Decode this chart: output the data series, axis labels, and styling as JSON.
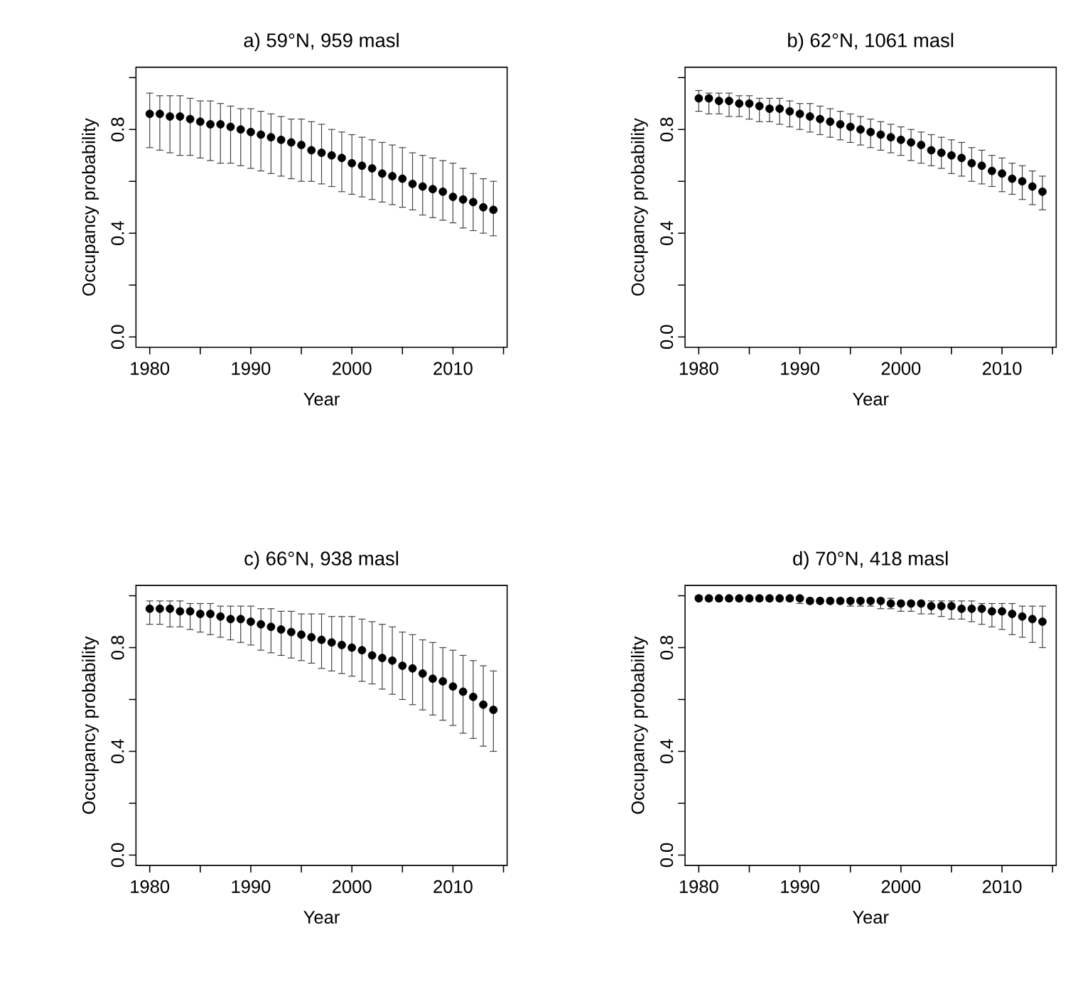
{
  "chart_data": [
    {
      "type": "scatter",
      "title": "a) 59°N, 959 masl",
      "xlabel": "Year",
      "ylabel": "Occupancy probability",
      "color": "#000000",
      "marker": "circle",
      "x": [
        1980,
        1981,
        1982,
        1983,
        1984,
        1985,
        1986,
        1987,
        1988,
        1989,
        1990,
        1991,
        1992,
        1993,
        1994,
        1995,
        1996,
        1997,
        1998,
        1999,
        2000,
        2001,
        2002,
        2003,
        2004,
        2005,
        2006,
        2007,
        2008,
        2009,
        2010,
        2011,
        2012,
        2013,
        2014
      ],
      "values": [
        0.86,
        0.86,
        0.85,
        0.85,
        0.84,
        0.83,
        0.82,
        0.82,
        0.81,
        0.8,
        0.79,
        0.78,
        0.77,
        0.76,
        0.75,
        0.74,
        0.72,
        0.71,
        0.7,
        0.69,
        0.67,
        0.66,
        0.65,
        0.63,
        0.62,
        0.61,
        0.59,
        0.58,
        0.57,
        0.56,
        0.54,
        0.53,
        0.52,
        0.5,
        0.49
      ],
      "errors": [
        [
          0.73,
          0.94
        ],
        [
          0.72,
          0.93
        ],
        [
          0.71,
          0.93
        ],
        [
          0.7,
          0.93
        ],
        [
          0.7,
          0.92
        ],
        [
          0.69,
          0.91
        ],
        [
          0.68,
          0.91
        ],
        [
          0.67,
          0.9
        ],
        [
          0.67,
          0.89
        ],
        [
          0.66,
          0.88
        ],
        [
          0.65,
          0.88
        ],
        [
          0.64,
          0.87
        ],
        [
          0.63,
          0.86
        ],
        [
          0.62,
          0.85
        ],
        [
          0.61,
          0.84
        ],
        [
          0.6,
          0.84
        ],
        [
          0.6,
          0.83
        ],
        [
          0.59,
          0.82
        ],
        [
          0.58,
          0.8
        ],
        [
          0.56,
          0.79
        ],
        [
          0.55,
          0.78
        ],
        [
          0.54,
          0.77
        ],
        [
          0.53,
          0.76
        ],
        [
          0.52,
          0.75
        ],
        [
          0.51,
          0.74
        ],
        [
          0.5,
          0.73
        ],
        [
          0.49,
          0.71
        ],
        [
          0.47,
          0.7
        ],
        [
          0.46,
          0.69
        ],
        [
          0.45,
          0.68
        ],
        [
          0.44,
          0.67
        ],
        [
          0.42,
          0.65
        ],
        [
          0.41,
          0.63
        ],
        [
          0.4,
          0.61
        ],
        [
          0.39,
          0.6
        ]
      ],
      "xlim": [
        1978.64,
        2015.36
      ],
      "ylim": [
        -0.04,
        1.04
      ],
      "xticks": [
        1980,
        {
          "value": 1985,
          "label": null
        },
        1990,
        {
          "value": 1995,
          "label": null
        },
        2000,
        {
          "value": 2005,
          "label": null
        },
        2010,
        {
          "value": 2015,
          "label": null
        }
      ],
      "yticks": [
        {
          "value": 0,
          "label": "0.0"
        },
        {
          "value": 0.2,
          "label": null
        },
        {
          "value": 0.4,
          "label": "0.4"
        },
        {
          "value": 0.6,
          "label": null
        },
        {
          "value": 0.8,
          "label": "0.8"
        },
        {
          "value": 1.0,
          "label": null
        }
      ]
    },
    {
      "type": "scatter",
      "title": "b) 62°N, 1061 masl",
      "xlabel": "Year",
      "ylabel": "Occupancy probability",
      "color": "#000000",
      "marker": "circle",
      "x": [
        1980,
        1981,
        1982,
        1983,
        1984,
        1985,
        1986,
        1987,
        1988,
        1989,
        1990,
        1991,
        1992,
        1993,
        1994,
        1995,
        1996,
        1997,
        1998,
        1999,
        2000,
        2001,
        2002,
        2003,
        2004,
        2005,
        2006,
        2007,
        2008,
        2009,
        2010,
        2011,
        2012,
        2013,
        2014
      ],
      "values": [
        0.92,
        0.92,
        0.91,
        0.91,
        0.9,
        0.9,
        0.89,
        0.88,
        0.88,
        0.87,
        0.86,
        0.85,
        0.84,
        0.83,
        0.82,
        0.81,
        0.8,
        0.79,
        0.78,
        0.77,
        0.76,
        0.75,
        0.74,
        0.72,
        0.71,
        0.7,
        0.69,
        0.67,
        0.66,
        0.64,
        0.63,
        0.61,
        0.6,
        0.58,
        0.56
      ],
      "errors": [
        [
          0.87,
          0.95
        ],
        [
          0.86,
          0.94
        ],
        [
          0.86,
          0.94
        ],
        [
          0.85,
          0.94
        ],
        [
          0.85,
          0.93
        ],
        [
          0.84,
          0.93
        ],
        [
          0.83,
          0.92
        ],
        [
          0.83,
          0.92
        ],
        [
          0.82,
          0.92
        ],
        [
          0.81,
          0.91
        ],
        [
          0.8,
          0.9
        ],
        [
          0.79,
          0.9
        ],
        [
          0.78,
          0.89
        ],
        [
          0.77,
          0.88
        ],
        [
          0.76,
          0.87
        ],
        [
          0.75,
          0.86
        ],
        [
          0.74,
          0.85
        ],
        [
          0.73,
          0.84
        ],
        [
          0.72,
          0.83
        ],
        [
          0.71,
          0.82
        ],
        [
          0.7,
          0.81
        ],
        [
          0.68,
          0.8
        ],
        [
          0.67,
          0.79
        ],
        [
          0.66,
          0.78
        ],
        [
          0.65,
          0.77
        ],
        [
          0.63,
          0.76
        ],
        [
          0.62,
          0.75
        ],
        [
          0.6,
          0.73
        ],
        [
          0.59,
          0.72
        ],
        [
          0.58,
          0.7
        ],
        [
          0.56,
          0.69
        ],
        [
          0.55,
          0.67
        ],
        [
          0.53,
          0.66
        ],
        [
          0.51,
          0.64
        ],
        [
          0.49,
          0.62
        ]
      ],
      "xlim": [
        1978.64,
        2015.36
      ],
      "ylim": [
        -0.04,
        1.04
      ],
      "xticks": [
        1980,
        {
          "value": 1985,
          "label": null
        },
        1990,
        {
          "value": 1995,
          "label": null
        },
        2000,
        {
          "value": 2005,
          "label": null
        },
        2010,
        {
          "value": 2015,
          "label": null
        }
      ],
      "yticks": [
        {
          "value": 0,
          "label": "0.0"
        },
        {
          "value": 0.2,
          "label": null
        },
        {
          "value": 0.4,
          "label": "0.4"
        },
        {
          "value": 0.6,
          "label": null
        },
        {
          "value": 0.8,
          "label": "0.8"
        },
        {
          "value": 1.0,
          "label": null
        }
      ]
    },
    {
      "type": "scatter",
      "title": "c) 66°N, 938 masl",
      "xlabel": "Year",
      "ylabel": "Occupancy probability",
      "color": "#000000",
      "marker": "circle",
      "x": [
        1980,
        1981,
        1982,
        1983,
        1984,
        1985,
        1986,
        1987,
        1988,
        1989,
        1990,
        1991,
        1992,
        1993,
        1994,
        1995,
        1996,
        1997,
        1998,
        1999,
        2000,
        2001,
        2002,
        2003,
        2004,
        2005,
        2006,
        2007,
        2008,
        2009,
        2010,
        2011,
        2012,
        2013,
        2014
      ],
      "values": [
        0.95,
        0.95,
        0.95,
        0.94,
        0.94,
        0.93,
        0.93,
        0.92,
        0.91,
        0.91,
        0.9,
        0.89,
        0.88,
        0.87,
        0.86,
        0.85,
        0.84,
        0.83,
        0.82,
        0.81,
        0.8,
        0.79,
        0.77,
        0.76,
        0.75,
        0.73,
        0.72,
        0.7,
        0.68,
        0.67,
        0.65,
        0.63,
        0.61,
        0.58,
        0.56
      ],
      "errors": [
        [
          0.89,
          0.98
        ],
        [
          0.89,
          0.98
        ],
        [
          0.88,
          0.98
        ],
        [
          0.88,
          0.98
        ],
        [
          0.87,
          0.97
        ],
        [
          0.86,
          0.97
        ],
        [
          0.85,
          0.97
        ],
        [
          0.84,
          0.96
        ],
        [
          0.83,
          0.96
        ],
        [
          0.82,
          0.96
        ],
        [
          0.81,
          0.96
        ],
        [
          0.79,
          0.95
        ],
        [
          0.78,
          0.95
        ],
        [
          0.77,
          0.94
        ],
        [
          0.76,
          0.94
        ],
        [
          0.75,
          0.93
        ],
        [
          0.74,
          0.93
        ],
        [
          0.72,
          0.93
        ],
        [
          0.71,
          0.92
        ],
        [
          0.7,
          0.92
        ],
        [
          0.69,
          0.92
        ],
        [
          0.67,
          0.91
        ],
        [
          0.66,
          0.9
        ],
        [
          0.64,
          0.89
        ],
        [
          0.62,
          0.88
        ],
        [
          0.6,
          0.86
        ],
        [
          0.58,
          0.85
        ],
        [
          0.56,
          0.83
        ],
        [
          0.54,
          0.82
        ],
        [
          0.52,
          0.8
        ],
        [
          0.5,
          0.79
        ],
        [
          0.47,
          0.77
        ],
        [
          0.45,
          0.75
        ],
        [
          0.42,
          0.73
        ],
        [
          0.4,
          0.71
        ]
      ],
      "xlim": [
        1978.64,
        2015.36
      ],
      "ylim": [
        -0.04,
        1.04
      ],
      "xticks": [
        1980,
        {
          "value": 1985,
          "label": null
        },
        1990,
        {
          "value": 1995,
          "label": null
        },
        2000,
        {
          "value": 2005,
          "label": null
        },
        2010,
        {
          "value": 2015,
          "label": null
        }
      ],
      "yticks": [
        {
          "value": 0,
          "label": "0.0"
        },
        {
          "value": 0.2,
          "label": null
        },
        {
          "value": 0.4,
          "label": "0.4"
        },
        {
          "value": 0.6,
          "label": null
        },
        {
          "value": 0.8,
          "label": "0.8"
        },
        {
          "value": 1.0,
          "label": null
        }
      ]
    },
    {
      "type": "scatter",
      "title": "d) 70°N, 418 masl",
      "xlabel": "Year",
      "ylabel": "Occupancy probability",
      "color": "#000000",
      "marker": "circle",
      "x": [
        1980,
        1981,
        1982,
        1983,
        1984,
        1985,
        1986,
        1987,
        1988,
        1989,
        1990,
        1991,
        1992,
        1993,
        1994,
        1995,
        1996,
        1997,
        1998,
        1999,
        2000,
        2001,
        2002,
        2003,
        2004,
        2005,
        2006,
        2007,
        2008,
        2009,
        2010,
        2011,
        2012,
        2013,
        2014
      ],
      "values": [
        0.99,
        0.99,
        0.99,
        0.99,
        0.99,
        0.99,
        0.99,
        0.99,
        0.99,
        0.99,
        0.99,
        0.98,
        0.98,
        0.98,
        0.98,
        0.98,
        0.98,
        0.98,
        0.98,
        0.97,
        0.97,
        0.97,
        0.97,
        0.96,
        0.96,
        0.96,
        0.95,
        0.95,
        0.95,
        0.94,
        0.94,
        0.93,
        0.92,
        0.91,
        0.9
      ],
      "errors": [
        [
          0.99,
          1.0
        ],
        [
          0.98,
          0.99
        ],
        [
          0.98,
          0.99
        ],
        [
          0.98,
          0.99
        ],
        [
          0.98,
          0.99
        ],
        [
          0.98,
          0.99
        ],
        [
          0.98,
          0.99
        ],
        [
          0.98,
          0.99
        ],
        [
          0.98,
          0.99
        ],
        [
          0.98,
          0.99
        ],
        [
          0.97,
          0.99
        ],
        [
          0.97,
          0.99
        ],
        [
          0.97,
          0.99
        ],
        [
          0.97,
          0.99
        ],
        [
          0.97,
          0.99
        ],
        [
          0.96,
          0.99
        ],
        [
          0.96,
          0.99
        ],
        [
          0.96,
          0.99
        ],
        [
          0.95,
          0.99
        ],
        [
          0.95,
          0.99
        ],
        [
          0.94,
          0.98
        ],
        [
          0.94,
          0.98
        ],
        [
          0.93,
          0.98
        ],
        [
          0.93,
          0.98
        ],
        [
          0.92,
          0.98
        ],
        [
          0.91,
          0.98
        ],
        [
          0.91,
          0.98
        ],
        [
          0.9,
          0.98
        ],
        [
          0.89,
          0.97
        ],
        [
          0.88,
          0.97
        ],
        [
          0.87,
          0.97
        ],
        [
          0.85,
          0.97
        ],
        [
          0.84,
          0.96
        ],
        [
          0.82,
          0.96
        ],
        [
          0.8,
          0.96
        ]
      ],
      "xlim": [
        1978.64,
        2015.36
      ],
      "ylim": [
        -0.04,
        1.04
      ],
      "xticks": [
        1980,
        {
          "value": 1985,
          "label": null
        },
        1990,
        {
          "value": 1995,
          "label": null
        },
        2000,
        {
          "value": 2005,
          "label": null
        },
        2010,
        {
          "value": 2015,
          "label": null
        }
      ],
      "yticks": [
        {
          "value": 0,
          "label": "0.0"
        },
        {
          "value": 0.2,
          "label": null
        },
        {
          "value": 0.4,
          "label": "0.4"
        },
        {
          "value": 0.6,
          "label": null
        },
        {
          "value": 0.8,
          "label": "0.8"
        },
        {
          "value": 1.0,
          "label": null
        }
      ]
    }
  ]
}
